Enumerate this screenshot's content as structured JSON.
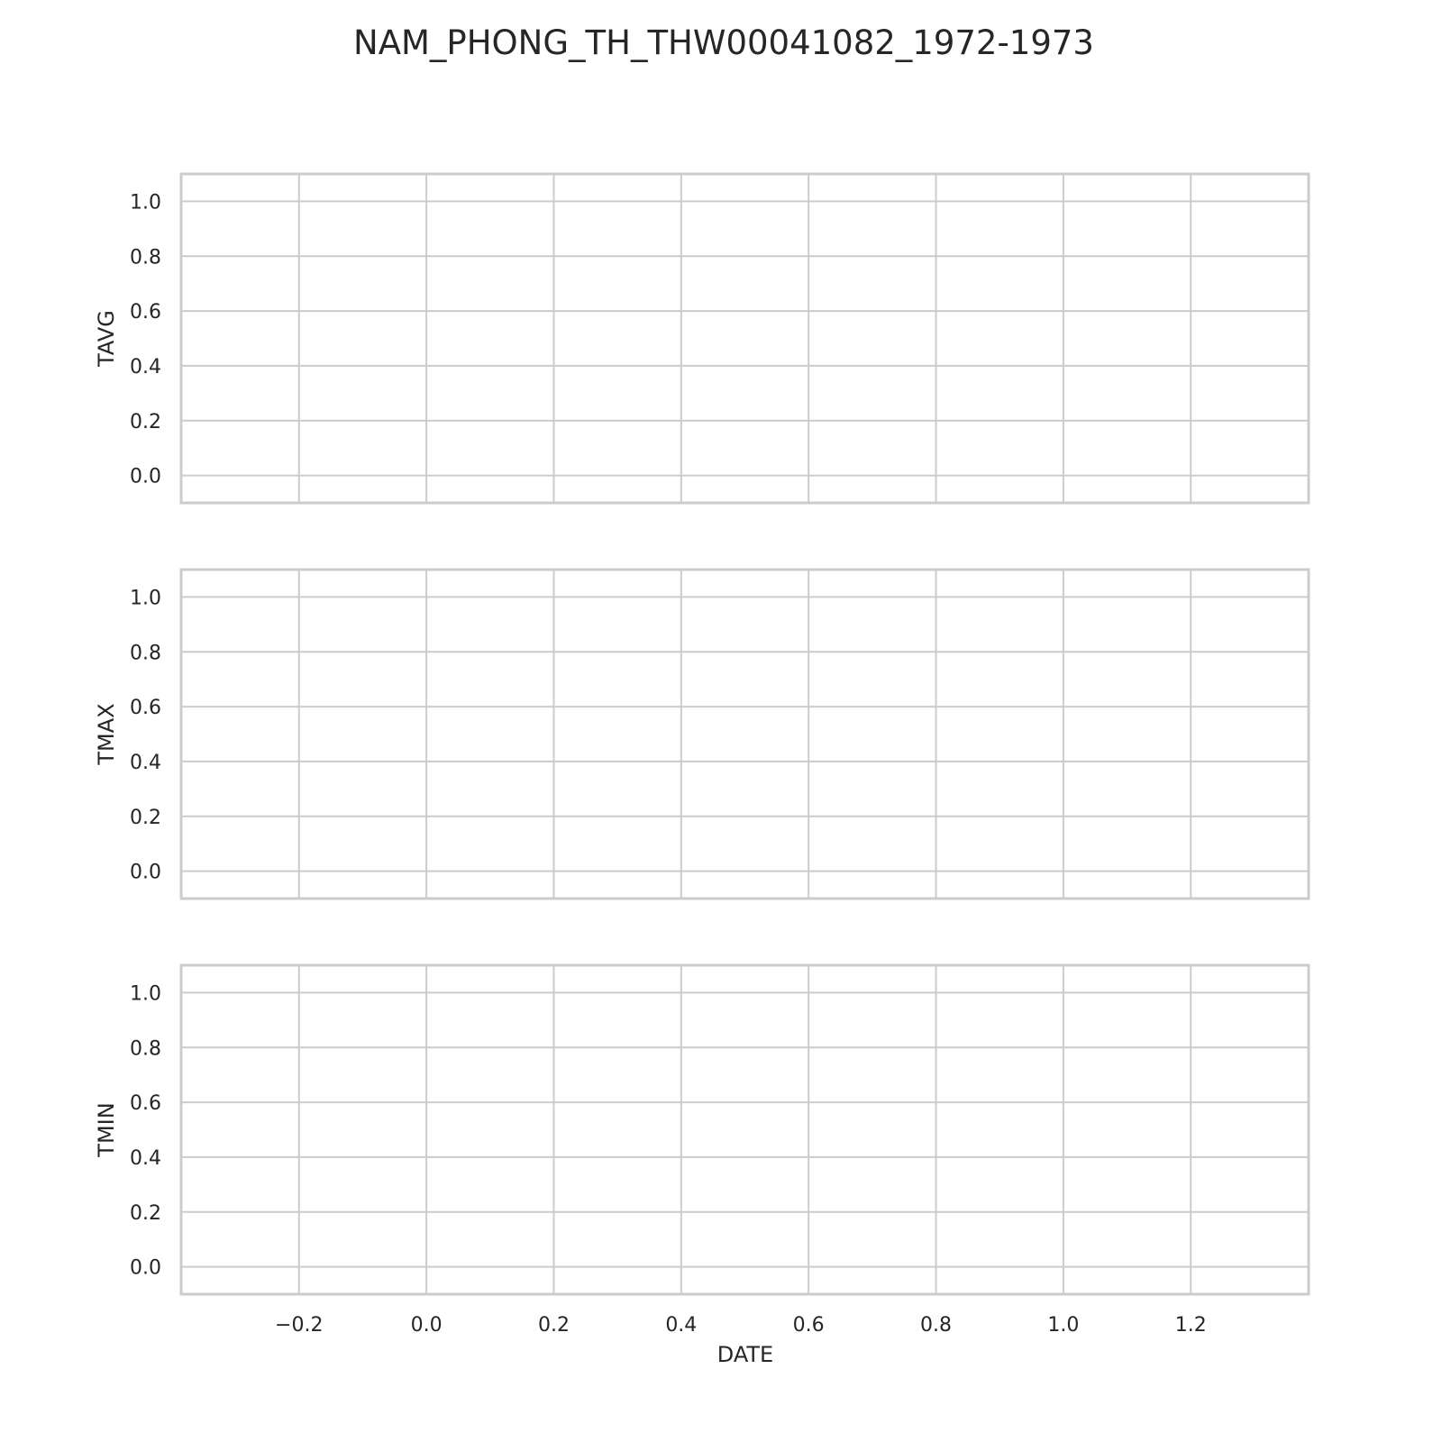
{
  "chart_data": {
    "type": "line",
    "title": "NAM_PHONG_TH_THW00041082_1972-1973",
    "xlabel": "DATE",
    "xlim": [
      -0.385,
      1.385
    ],
    "x_ticks": [
      -0.2,
      0.0,
      0.2,
      0.4,
      0.6,
      0.8,
      1.0,
      1.2
    ],
    "x_tick_labels": [
      "−0.2",
      "0.0",
      "0.2",
      "0.4",
      "0.6",
      "0.8",
      "1.0",
      "1.2"
    ],
    "grid": true,
    "sharex": true,
    "subplots": [
      {
        "ylabel": "TAVG",
        "ylim": [
          -0.1,
          1.1
        ],
        "y_ticks": [
          0.0,
          0.2,
          0.4,
          0.6,
          0.8,
          1.0
        ],
        "y_tick_labels": [
          "0.0",
          "0.2",
          "0.4",
          "0.6",
          "0.8",
          "1.0"
        ],
        "series": []
      },
      {
        "ylabel": "TMAX",
        "ylim": [
          -0.1,
          1.1
        ],
        "y_ticks": [
          0.0,
          0.2,
          0.4,
          0.6,
          0.8,
          1.0
        ],
        "y_tick_labels": [
          "0.0",
          "0.2",
          "0.4",
          "0.6",
          "0.8",
          "1.0"
        ],
        "series": []
      },
      {
        "ylabel": "TMIN",
        "ylim": [
          -0.1,
          1.1
        ],
        "y_ticks": [
          0.0,
          0.2,
          0.4,
          0.6,
          0.8,
          1.0
        ],
        "y_tick_labels": [
          "0.0",
          "0.2",
          "0.4",
          "0.6",
          "0.8",
          "1.0"
        ],
        "series": []
      }
    ],
    "colors": {
      "grid": "#cccccc",
      "frame": "#cccccc",
      "text": "#262626",
      "background": "#ffffff"
    }
  }
}
